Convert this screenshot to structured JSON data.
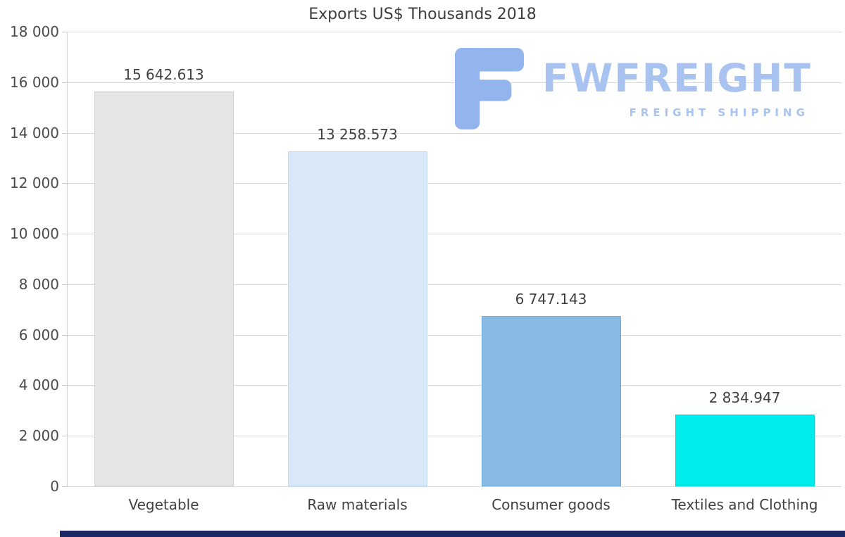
{
  "logo": {
    "name": "FWFREIGHT",
    "tagline": "FREIGHT SHIPPING",
    "text_color": "#a9c3f0",
    "icon_color": "#93b4ec"
  },
  "footer": {
    "bar_color": "#1e2a68"
  },
  "chart_data": {
    "type": "bar",
    "title": "Exports US$ Thousands 2018",
    "categories": [
      "Vegetable",
      "Raw materials",
      "Consumer goods",
      "Textiles and Clothing"
    ],
    "values": [
      15642.613,
      13258.573,
      6747.143,
      2834.947
    ],
    "value_labels": [
      "15 642.613",
      "13 258.573",
      "6 747.143",
      "2 834.947"
    ],
    "bar_colors": [
      "#e5e5e5",
      "#d9e8f8",
      "#88bae4",
      "#00ecec"
    ],
    "bar_border_colors": [
      "#d2d2d2",
      "#c4daf1",
      "#74aad9",
      "#00d6d6"
    ],
    "xlabel": "",
    "ylabel": "",
    "ylim": [
      0,
      18000
    ],
    "ytick_step": 2000,
    "ytick_labels": [
      "0",
      "2 000",
      "4 000",
      "6 000",
      "8 000",
      "10 000",
      "12 000",
      "14 000",
      "16 000",
      "18 000"
    ],
    "grid": true,
    "legend": false,
    "gridline_color": "#d9d9d9",
    "tick_text_color": "#4a4a4a",
    "label_text_color": "#404040"
  }
}
